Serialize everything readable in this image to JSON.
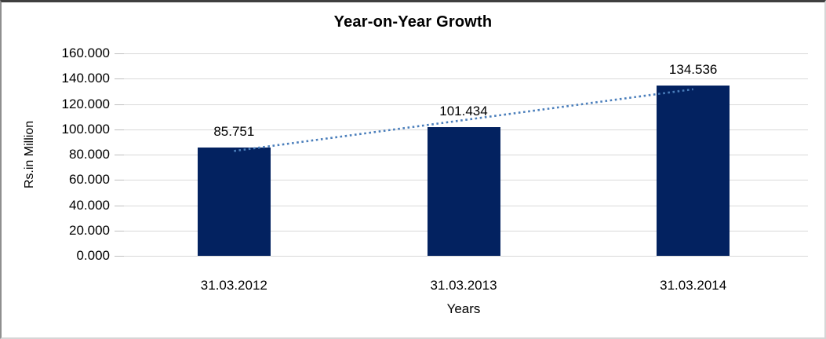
{
  "chart_data": {
    "type": "bar",
    "title": "Year-on-Year Growth",
    "xlabel": "Years",
    "ylabel": "Rs.in Million",
    "categories": [
      "31.03.2012",
      "31.03.2013",
      "31.03.2014"
    ],
    "values": [
      85.751,
      101.434,
      134.536
    ],
    "value_labels": [
      "85.751",
      "101.434",
      "134.536"
    ],
    "ylim": [
      0,
      160
    ],
    "ytick_values": [
      160,
      140,
      120,
      100,
      80,
      60,
      40,
      20,
      0
    ],
    "ytick_labels": [
      "160.000",
      "140.000",
      "120.000",
      "100.000",
      "80.000",
      "60.000",
      "40.000",
      "20.000",
      "0.000"
    ],
    "grid": true,
    "legend": "none",
    "bar_color": "#032260",
    "gridline_color": "#d9d9d9",
    "trendline": {
      "type": "linear",
      "style": "dotted",
      "color": "#4a7ebb"
    }
  }
}
